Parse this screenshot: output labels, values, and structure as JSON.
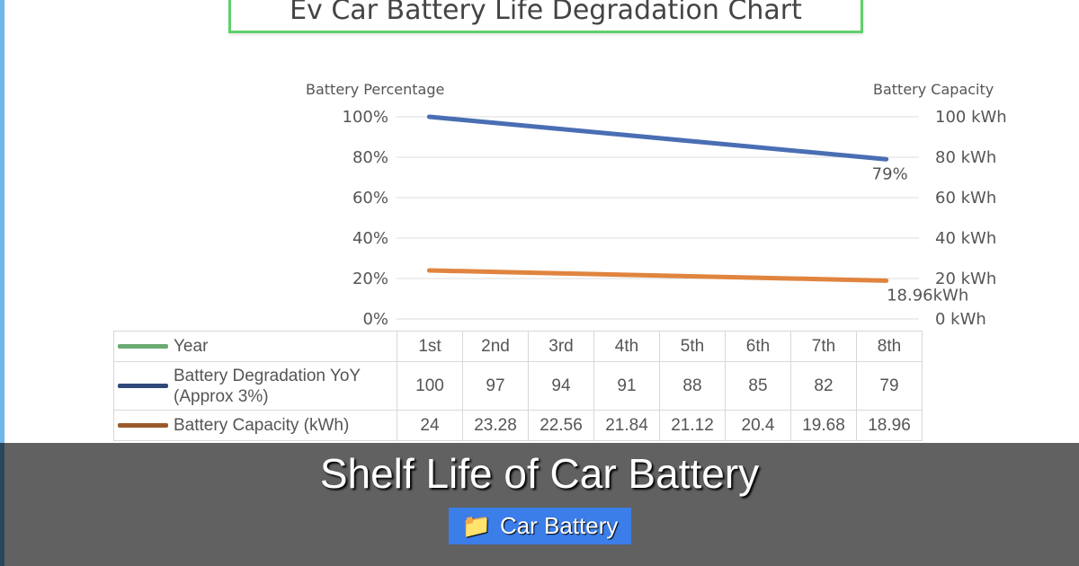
{
  "chart_data": {
    "type": "line",
    "title": "Ev Car Battery Life Degradation Chart",
    "y_left_label": "Battery Percentage",
    "y_right_label": "Battery Capacity",
    "y_left_ticks": [
      "0%",
      "20%",
      "40%",
      "60%",
      "80%",
      "100%"
    ],
    "y_right_ticks": [
      "0 kWh",
      "20 kWh",
      "40 kWh",
      "60 kWh",
      "80 kWh",
      "100 kWh"
    ],
    "ylim": [
      0,
      100
    ],
    "grid": true,
    "categories": [
      "1st",
      "2nd",
      "3rd",
      "4th",
      "5th",
      "6th",
      "7th",
      "8th"
    ],
    "series": [
      {
        "name": "Battery Degradation YoY (Approx 3%)",
        "axis": "left",
        "color": "#4a6eb3",
        "values": [
          100,
          97,
          94,
          91,
          88,
          85,
          82,
          79
        ],
        "end_label": "79%"
      },
      {
        "name": "Battery Capacity (kWh)",
        "axis": "right",
        "color": "#e0843f",
        "values": [
          24,
          23.28,
          22.56,
          21.84,
          21.12,
          20.4,
          19.68,
          18.96
        ],
        "end_label": "18.96kWh"
      }
    ],
    "table": {
      "year_label": "Year",
      "year_color": "#6aaa72",
      "rows": [
        {
          "label": "Battery Degradation YoY (Approx 3%)",
          "cells": [
            "100",
            "97",
            "94",
            "91",
            "88",
            "85",
            "82",
            "79"
          ]
        },
        {
          "label": "Battery Capacity (kWh)",
          "cells": [
            "24",
            "23.28",
            "22.56",
            "21.84",
            "21.12",
            "20.4",
            "19.68",
            "18.96"
          ]
        }
      ]
    }
  },
  "overlay": {
    "headline": "Shelf Life of Car Battery",
    "tag_icon": "folder-icon",
    "tag_label": "Car Battery",
    "tag_color": "#3b7de9"
  }
}
